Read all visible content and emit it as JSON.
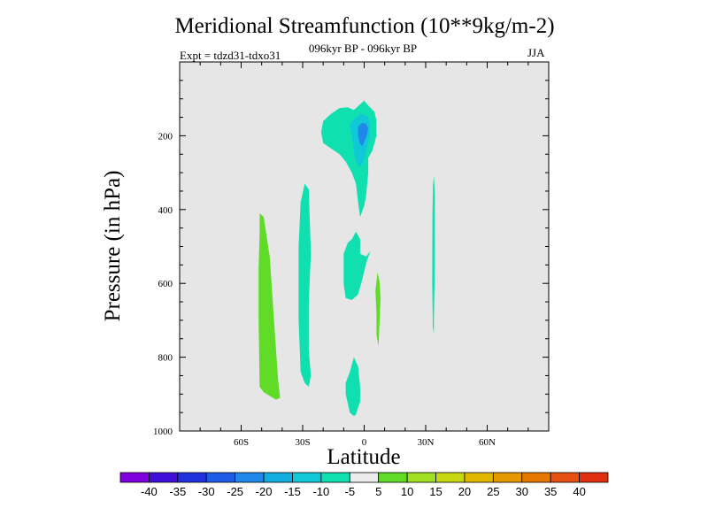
{
  "chart_data": {
    "type": "contour",
    "title": "Meridional Streamfunction (10**9kg/m-2)",
    "subtitle": "096kyr BP - 096kyr BP",
    "left_label": "Expt = tdzd31-tdxo31",
    "right_label": "JJA",
    "xlabel": "Latitude",
    "ylabel": "Pressure (in hPa)",
    "xlim": [
      -90,
      90
    ],
    "ylim": [
      1000,
      0
    ],
    "x_ticks": [
      {
        "value": -60,
        "label": "60S"
      },
      {
        "value": -30,
        "label": "30S"
      },
      {
        "value": 0,
        "label": "0"
      },
      {
        "value": 30,
        "label": "30N"
      },
      {
        "value": 60,
        "label": "60N"
      }
    ],
    "y_ticks": [
      {
        "value": 200,
        "label": "200"
      },
      {
        "value": 400,
        "label": "400"
      },
      {
        "value": 600,
        "label": "600"
      },
      {
        "value": 800,
        "label": "800"
      },
      {
        "value": 1000,
        "label": "1000"
      }
    ],
    "background_color": "#e6e6e6",
    "colorbar": {
      "colors": [
        "#8000e0",
        "#4010d8",
        "#1f30dc",
        "#1f5ce6",
        "#1f88ea",
        "#10aee0",
        "#10c8d8",
        "#10e0b0",
        "#ececec",
        "#60dc28",
        "#a0e020",
        "#c8d810",
        "#e0b800",
        "#e69800",
        "#e67800",
        "#e65010",
        "#e03010"
      ],
      "labels": [
        "-40",
        "-35",
        "-30",
        "-25",
        "-20",
        "-15",
        "-10",
        "-5",
        "5",
        "10",
        "15",
        "20",
        "25",
        "30",
        "35",
        "40"
      ]
    },
    "regions": [
      {
        "name": "contour-region-green-south",
        "value": 10,
        "color": "#60dc28",
        "points": [
          [
            -51,
            410
          ],
          [
            -49,
            420
          ],
          [
            -46,
            530
          ],
          [
            -44,
            700
          ],
          [
            -42,
            860
          ],
          [
            -41,
            910
          ],
          [
            -43,
            915
          ],
          [
            -49,
            895
          ],
          [
            -51,
            880
          ],
          [
            -51.5,
            700
          ],
          [
            -51.5,
            560
          ],
          [
            -51,
            460
          ]
        ]
      },
      {
        "name": "contour-region-cyan-30s",
        "value": -5,
        "color": "#10e0b0",
        "points": [
          [
            -29,
            330
          ],
          [
            -27,
            345
          ],
          [
            -26,
            520
          ],
          [
            -27,
            650
          ],
          [
            -27,
            780
          ],
          [
            -26,
            850
          ],
          [
            -27,
            880
          ],
          [
            -29,
            870
          ],
          [
            -31,
            840
          ],
          [
            -32,
            700
          ],
          [
            -32,
            500
          ],
          [
            -31,
            380
          ]
        ]
      },
      {
        "name": "contour-region-cyan-upper",
        "value": -5,
        "color": "#10e0b0",
        "points": [
          [
            -21,
            190
          ],
          [
            -20,
            160
          ],
          [
            -16,
            140
          ],
          [
            -12,
            125
          ],
          [
            -8,
            123
          ],
          [
            -5,
            130
          ],
          [
            -3,
            120
          ],
          [
            0,
            105
          ],
          [
            2,
            118
          ],
          [
            5,
            135
          ],
          [
            6,
            160
          ],
          [
            6,
            200
          ],
          [
            4,
            240
          ],
          [
            2,
            260
          ],
          [
            2,
            300
          ],
          [
            1,
            360
          ],
          [
            0,
            390
          ],
          [
            -2,
            420
          ],
          [
            -3,
            380
          ],
          [
            -4,
            330
          ],
          [
            -6,
            300
          ],
          [
            -9,
            270
          ],
          [
            -12,
            250
          ],
          [
            -16,
            235
          ],
          [
            -20,
            220
          ]
        ]
      },
      {
        "name": "contour-region-blue-upper",
        "value": -10,
        "color": "#10c8d8",
        "points": [
          [
            -7,
            170
          ],
          [
            -4,
            150
          ],
          [
            -1,
            140
          ],
          [
            2,
            150
          ],
          [
            3,
            175
          ],
          [
            2,
            220
          ],
          [
            0,
            265
          ],
          [
            -2,
            285
          ],
          [
            -4,
            270
          ],
          [
            -5,
            240
          ],
          [
            -6,
            200
          ]
        ]
      },
      {
        "name": "contour-region-blue-core",
        "value": -15,
        "color": "#1f88ea",
        "points": [
          [
            -3,
            175
          ],
          [
            -1,
            165
          ],
          [
            1,
            168
          ],
          [
            2,
            180
          ],
          [
            1,
            205
          ],
          [
            -1,
            228
          ],
          [
            -2,
            222
          ],
          [
            -3,
            200
          ]
        ]
      },
      {
        "name": "contour-region-cyan-eq-mid",
        "value": -5,
        "color": "#10e0b0",
        "points": [
          [
            -6,
            480
          ],
          [
            -4,
            460
          ],
          [
            -2,
            480
          ],
          [
            -2,
            520
          ],
          [
            1,
            527
          ],
          [
            3,
            512
          ],
          [
            1,
            545
          ],
          [
            -1,
            590
          ],
          [
            -3,
            630
          ],
          [
            -6,
            645
          ],
          [
            -9,
            640
          ],
          [
            -10,
            600
          ],
          [
            -10,
            520
          ],
          [
            -8,
            490
          ]
        ]
      },
      {
        "name": "contour-region-cyan-eq-low",
        "value": -5,
        "color": "#10e0b0",
        "points": [
          [
            -5,
            800
          ],
          [
            -3,
            825
          ],
          [
            -2,
            880
          ],
          [
            -2,
            920
          ],
          [
            -4,
            955
          ],
          [
            -5,
            960
          ],
          [
            -7,
            950
          ],
          [
            -9,
            900
          ],
          [
            -9,
            870
          ],
          [
            -7,
            840
          ]
        ]
      },
      {
        "name": "contour-region-green-eq",
        "value": 10,
        "color": "#60dc28",
        "points": [
          [
            6.5,
            570
          ],
          [
            7.5,
            595
          ],
          [
            8,
            640
          ],
          [
            7.5,
            700
          ],
          [
            7,
            770
          ],
          [
            6,
            740
          ],
          [
            6,
            680
          ],
          [
            5.5,
            620
          ]
        ]
      },
      {
        "name": "contour-region-cyan-30n",
        "value": -5,
        "color": "#10e0b0",
        "points": [
          [
            34,
            310
          ],
          [
            34.5,
            360
          ],
          [
            34.5,
            550
          ],
          [
            34,
            700
          ],
          [
            34,
            735
          ],
          [
            33.5,
            720
          ],
          [
            33.2,
            600
          ],
          [
            33.3,
            420
          ],
          [
            33.6,
            330
          ]
        ]
      }
    ]
  }
}
